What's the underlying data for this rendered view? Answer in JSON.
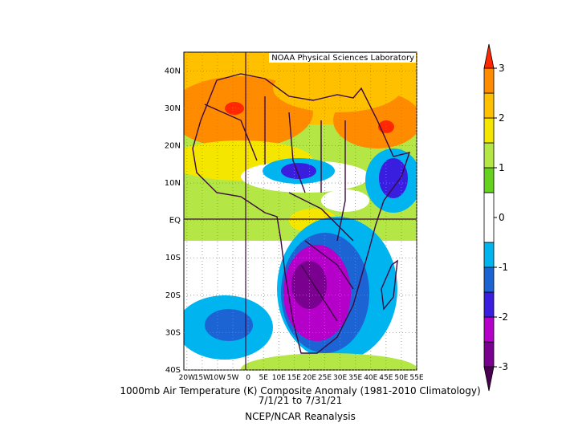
{
  "map": {
    "credit": "NOAA Physical Sciences Laboratory",
    "title": "1000mb Air Temperature (K) Composite Anomaly (1981-2010 Climatology)",
    "dates": "7/1/21  to 7/31/21",
    "source": "NCEP/NCAR Reanalysis",
    "xlim": [
      -21,
      55
    ],
    "ylim": [
      -40,
      45
    ],
    "xticks": [
      {
        "value": -20,
        "label": "20W"
      },
      {
        "value": -15,
        "label": "15W"
      },
      {
        "value": -10,
        "label": "10W"
      },
      {
        "value": -5,
        "label": "5W"
      },
      0,
      {
        "value": 5,
        "label": "5E"
      },
      {
        "value": 10,
        "label": "10E"
      },
      {
        "value": 15,
        "label": "15E"
      },
      {
        "value": 20,
        "label": "20E"
      },
      {
        "value": 25,
        "label": "25E"
      },
      {
        "value": 30,
        "label": "30E"
      },
      {
        "value": 35,
        "label": "35E"
      },
      {
        "value": 40,
        "label": "40E"
      },
      {
        "value": 45,
        "label": "45E"
      },
      {
        "value": 50,
        "label": "50E"
      },
      {
        "value": 55,
        "label": "55E"
      }
    ],
    "yticks": [
      {
        "value": 40,
        "label": "40N"
      },
      {
        "value": 30,
        "label": "30N"
      },
      {
        "value": 20,
        "label": "20N"
      },
      {
        "value": 10,
        "label": "10N"
      },
      {
        "value": 0,
        "label": "EQ"
      },
      {
        "value": -10,
        "label": "10S"
      },
      {
        "value": -20,
        "label": "20S"
      },
      {
        "value": -30,
        "label": "30S"
      },
      {
        "value": -40,
        "label": "40S"
      }
    ],
    "colorbar": {
      "lim": [
        -3,
        3
      ],
      "ticks": [
        -3,
        -2,
        -1,
        0,
        1,
        2,
        3
      ],
      "levels": [
        -3,
        -2.5,
        -2,
        -1.5,
        -1,
        -0.5,
        0.5,
        1,
        1.5,
        2,
        2.5,
        3
      ],
      "colors": [
        "#7a0090",
        "#b400c8",
        "#3a1ee0",
        "#1c64d4",
        "#00b4f0",
        "#ffffff",
        "#64d21e",
        "#b4e646",
        "#f5e600",
        "#ffc000",
        "#ff8c00"
      ],
      "under_color": "#4a0050",
      "over_color": "#ff2800"
    }
  }
}
